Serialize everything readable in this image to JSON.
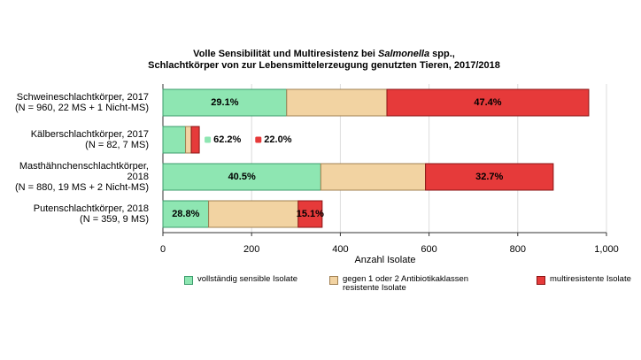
{
  "chart_data": {
    "type": "stacked-barh",
    "title": [
      "Volle Sensibilität und Multiresistenz bei ",
      "Salmonella",
      " spp.,"
    ],
    "subtitle": "Schlachtkörper von zur Lebensmittelerzeugung genutzten Tieren, 2017/2018",
    "categories": [
      [
        "Schweineschlachtkörper, 2017",
        "(N = 960, 22 MS + 1 Nicht-MS)"
      ],
      [
        "Kälberschlachtkörper, 2017",
        "(N = 82, 7 MS)"
      ],
      [
        "Masthähnchenschlachtkörper,",
        "2018",
        "(N = 880, 19 MS + 2 Nicht-MS)"
      ],
      [
        "Putenschlachtkörper, 2018",
        "(N = 359, 9 MS)"
      ]
    ],
    "series": [
      {
        "name": "vollständig sensible Isolate",
        "color": "#8ee6b2",
        "edge": "#3c9c6c",
        "values": [
          279,
          51,
          356,
          103
        ],
        "percents": [
          29.1,
          62.2,
          40.5,
          28.8
        ],
        "percent_labels": [
          "29.1%",
          "62.2%",
          "40.5%",
          "28.8%"
        ]
      },
      {
        "name": "gegen 1 oder 2 Antibiotikaklassen resistente Isolate",
        "color": "#f2d3a2",
        "edge": "#a08052",
        "values": [
          226,
          13,
          236,
          202
        ]
      },
      {
        "name": "multiresistente Isolate",
        "color": "#e63a3a",
        "edge": "#8a1414",
        "values": [
          455,
          18,
          288,
          54
        ],
        "percents": [
          47.4,
          22.0,
          32.7,
          15.1
        ],
        "percent_labels": [
          "47.4%",
          "22.0%",
          "32.7%",
          "15.1%"
        ]
      }
    ],
    "xlabel": "Anzahl Isolate",
    "xlim": [
      0,
      1000
    ],
    "xticks": [
      0,
      200,
      400,
      600,
      800,
      {
        "value": 1000,
        "label": "1,000"
      }
    ],
    "grid": true
  }
}
